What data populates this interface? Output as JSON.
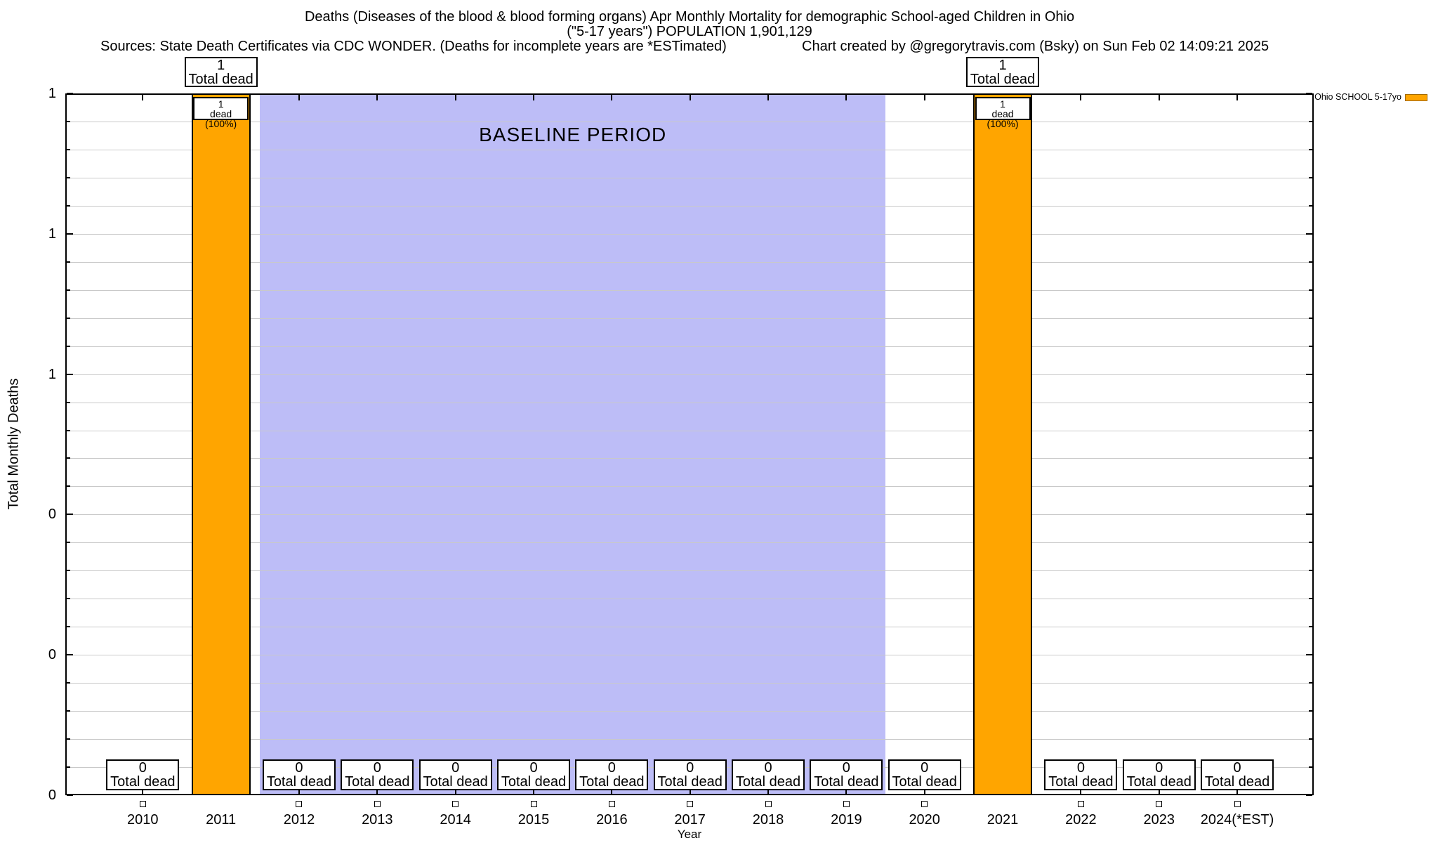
{
  "header": {
    "title_line1": "Deaths (Diseases of the blood & blood forming organs) Apr Monthly Mortality for demographic School-aged Children in Ohio",
    "title_line2": "(\"5-17 years\") POPULATION 1,901,129",
    "sources": "Sources: State Death Certificates via CDC WONDER. (Deaths for incomplete years are *ESTimated)",
    "credit": "Chart created by @gregorytravis.com (Bsky) on Sun Feb 02 14:09:21 2025"
  },
  "legend": {
    "series_label": "Ohio SCHOOL 5-17yo",
    "swatch_color": "#FFA500",
    "swatch_border_color": "#a36a00"
  },
  "axes": {
    "y_title": "Total Monthly Deaths",
    "x_title": "Year",
    "y_tick_labels_top_to_bottom": [
      "1",
      "1",
      "1",
      "0",
      "0",
      "0"
    ]
  },
  "baseline_band": {
    "label": "BASELINE PERIOD",
    "x_from_year": 2011.5,
    "x_to_year": 2019.5,
    "fill_color": "#BDBDF7"
  },
  "annotations": {
    "total_dead_line": "Total dead",
    "one_bar_inner_line": "dead (100%)"
  },
  "colors": {
    "bar_fill": "#FFA500",
    "bar_border": "#000000",
    "gridline": "#c9c9c9",
    "plot_border": "#000000",
    "background": "#ffffff"
  },
  "chart_data": {
    "type": "bar",
    "title": "Deaths (Diseases of the blood & blood forming organs) Apr Monthly Mortality for demographic School-aged Children in Ohio (\"5-17 years\") POPULATION 1,901,129",
    "xlabel": "Year",
    "ylabel": "Total Monthly Deaths",
    "categories": [
      "2010",
      "2011",
      "2012",
      "2013",
      "2014",
      "2015",
      "2016",
      "2017",
      "2018",
      "2019",
      "2020",
      "2021",
      "2022",
      "2023",
      "2024(*EST)"
    ],
    "series": [
      {
        "name": "Ohio SCHOOL 5-17yo",
        "values": [
          0,
          1,
          0,
          0,
          0,
          0,
          0,
          0,
          0,
          0,
          0,
          1,
          0,
          0,
          0
        ]
      }
    ],
    "ylim": [
      0,
      1
    ],
    "y_major_ticks": [
      0,
      0.2,
      0.4,
      0.6,
      0.8,
      1.0
    ],
    "minor_gridlines_per_major": 5,
    "grid": true,
    "bar_color": "#FFA500",
    "legend_position": "top-right outside",
    "baseline_band": {
      "from": 2011.5,
      "to": 2019.5,
      "label": "BASELINE PERIOD"
    },
    "bar_value_labels": {
      "zero_years": [
        "0",
        "Total dead"
      ],
      "one_years_above_plot": [
        "1",
        "Total dead"
      ],
      "one_years_inside_bar": [
        "1",
        "dead (100%)"
      ]
    },
    "point_markers_below_axis_for_zero_years": true
  }
}
